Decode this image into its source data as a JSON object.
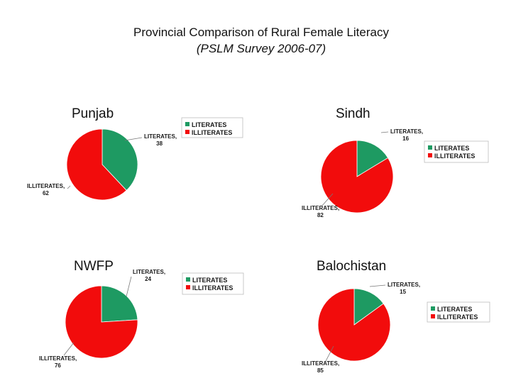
{
  "header": {
    "title": "Provincial Comparison of Rural Female Literacy",
    "subtitle": "(PSLM Survey 2006-07)"
  },
  "colors": {
    "literates": "#1e9a62",
    "illiterates": "#f20c0c"
  },
  "chart_data": [
    {
      "type": "pie",
      "title": "Punjab",
      "labels": [
        "LITERATES",
        "ILLITERATES"
      ],
      "values": [
        38,
        62
      ],
      "legend": [
        "LITERATES",
        "ILLITERATES"
      ],
      "legend_position": "top-right"
    },
    {
      "type": "pie",
      "title": "Sindh",
      "labels": [
        "LITERATES",
        "ILLITERATES"
      ],
      "values": [
        16,
        82
      ],
      "legend": [
        "LITERATES",
        "ILLITERATES"
      ],
      "legend_position": "right"
    },
    {
      "type": "pie",
      "title": "NWFP",
      "labels": [
        "LITERATES",
        "ILLITERATES"
      ],
      "values": [
        24,
        76
      ],
      "legend": [
        "LITERATES",
        "ILLITERATES"
      ],
      "legend_position": "top-right"
    },
    {
      "type": "pie",
      "title": "Balochistan",
      "labels": [
        "LITERATES",
        "ILLITERATES"
      ],
      "values": [
        15,
        85
      ],
      "legend": [
        "LITERATES",
        "ILLITERATES"
      ],
      "legend_position": "right"
    }
  ]
}
